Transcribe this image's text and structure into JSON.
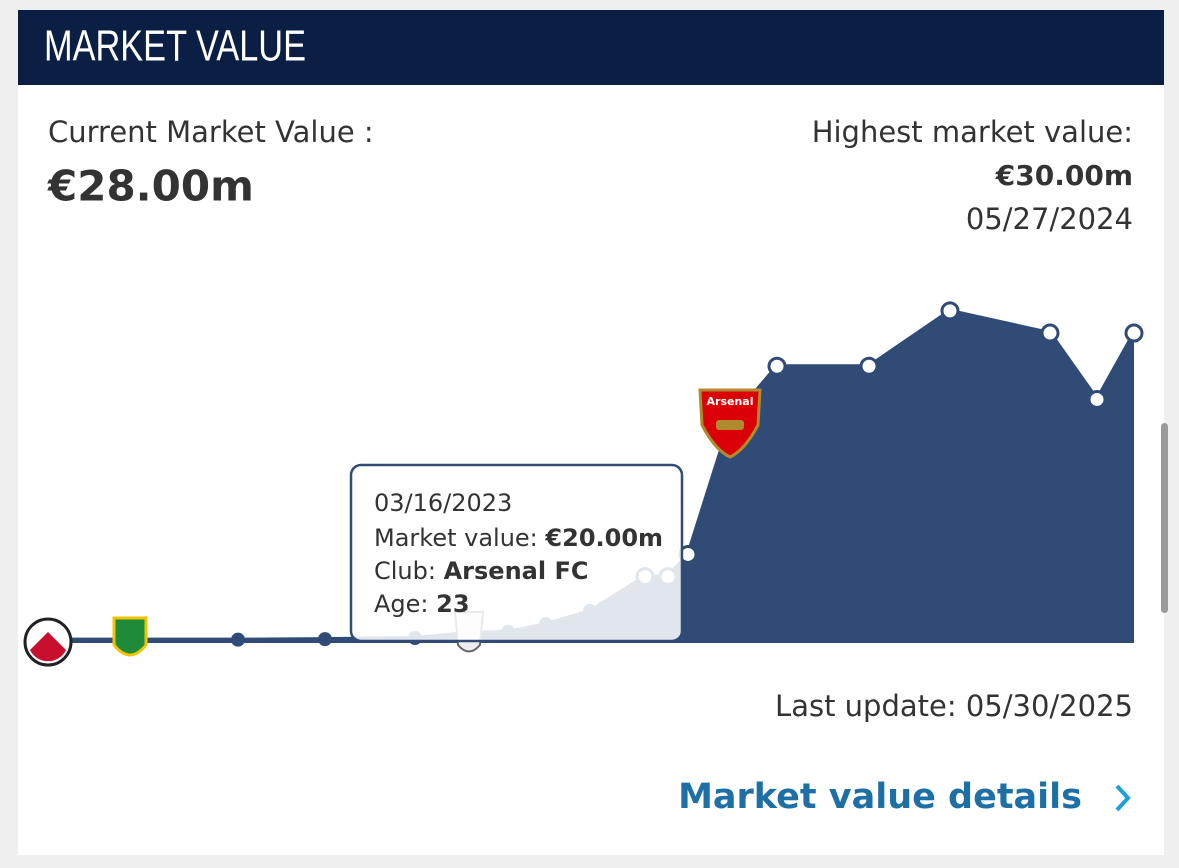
{
  "header": {
    "title": "MARKET VALUE"
  },
  "current": {
    "label": "Current Market Value :",
    "value": "€28.00m"
  },
  "highest": {
    "label": "Highest market value:",
    "value": "€30.00m",
    "date": "05/27/2024"
  },
  "chart_data": {
    "type": "area",
    "color": "#2f4b76",
    "crest_label": "Arsenal",
    "values": [
      0.3,
      0.3,
      0.3,
      0.35,
      0.45,
      0.9,
      1,
      1.7,
      2.9,
      6,
      6,
      8,
      20,
      25,
      25,
      30,
      28,
      22,
      28
    ]
  },
  "tooltip": {
    "date": "03/16/2023",
    "market_value_label": "Market value:",
    "market_value": "€20.00m",
    "club_label": "Club:",
    "club": "Arsenal FC",
    "age_label": "Age:",
    "age": "23"
  },
  "last_update": "Last update: 05/30/2025",
  "link": "Market value details"
}
